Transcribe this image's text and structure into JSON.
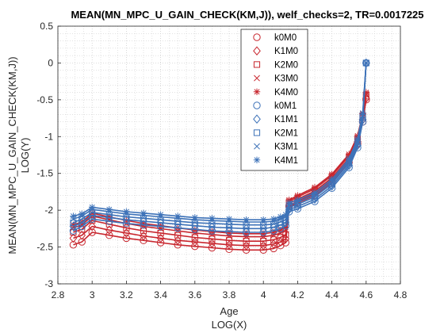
{
  "chart_data": {
    "type": "line",
    "title": "MEAN(MN_MPC_U_GAIN_CHECK(KM,J)), welf_checks=2, TR=0.0017225",
    "xlabel": "Age",
    "xlabel2": "LOG(X)",
    "ylabel": "MEAN(MN_MPC_U_GAIN_CHECK(KM,J))",
    "ylabel2": "LOG(Y)",
    "xlim": [
      2.8,
      4.8
    ],
    "ylim": [
      -3,
      0.5
    ],
    "xticks": [
      "2.8",
      "3",
      "3.2",
      "3.4",
      "3.6",
      "3.8",
      "4",
      "4.2",
      "4.4",
      "4.6",
      "4.8"
    ],
    "yticks": [
      "-3",
      "-2.5",
      "-2",
      "-1.5",
      "-1",
      "-0.5",
      "0",
      "0.5"
    ],
    "grid": true,
    "minor_grid": true,
    "legend_position": "top-right",
    "colors": {
      "red": "#c8262e",
      "blue": "#3d72b8"
    },
    "series": [
      {
        "name": "k0M0",
        "color": "#c8262e",
        "marker": "circle",
        "x": [
          2.89,
          2.94,
          3.0,
          3.1,
          3.2,
          3.3,
          3.4,
          3.5,
          3.6,
          3.7,
          3.8,
          3.9,
          4.0,
          4.06,
          4.1,
          4.13,
          4.15,
          4.2,
          4.3,
          4.4,
          4.5,
          4.55,
          4.58,
          4.6
        ],
        "y": [
          -2.47,
          -2.43,
          -2.3,
          -2.34,
          -2.38,
          -2.41,
          -2.44,
          -2.47,
          -2.49,
          -2.51,
          -2.53,
          -2.54,
          -2.54,
          -2.52,
          -2.48,
          -2.44,
          -1.95,
          -1.9,
          -1.8,
          -1.62,
          -1.35,
          -1.1,
          -0.8,
          -0.5
        ]
      },
      {
        "name": "K1M0",
        "color": "#c8262e",
        "marker": "diamond",
        "x": [
          2.89,
          2.94,
          3.0,
          3.1,
          3.2,
          3.3,
          3.4,
          3.5,
          3.6,
          3.7,
          3.8,
          3.9,
          4.0,
          4.06,
          4.1,
          4.13,
          4.15,
          4.2,
          4.3,
          4.4,
          4.5,
          4.55,
          4.58,
          4.6
        ],
        "y": [
          -2.38,
          -2.34,
          -2.22,
          -2.27,
          -2.31,
          -2.35,
          -2.38,
          -2.41,
          -2.43,
          -2.45,
          -2.47,
          -2.48,
          -2.48,
          -2.46,
          -2.43,
          -2.39,
          -1.93,
          -1.88,
          -1.77,
          -1.59,
          -1.32,
          -1.07,
          -0.77,
          -0.48
        ]
      },
      {
        "name": "K2M0",
        "color": "#c8262e",
        "marker": "square",
        "x": [
          2.89,
          2.94,
          3.0,
          3.1,
          3.2,
          3.3,
          3.4,
          3.5,
          3.6,
          3.7,
          3.8,
          3.9,
          4.0,
          4.06,
          4.1,
          4.13,
          4.15,
          4.2,
          4.3,
          4.4,
          4.5,
          4.55,
          4.58,
          4.6
        ],
        "y": [
          -2.3,
          -2.26,
          -2.14,
          -2.19,
          -2.24,
          -2.28,
          -2.31,
          -2.34,
          -2.37,
          -2.39,
          -2.41,
          -2.42,
          -2.42,
          -2.4,
          -2.37,
          -2.33,
          -1.9,
          -1.85,
          -1.74,
          -1.56,
          -1.29,
          -1.04,
          -0.74,
          -0.45
        ]
      },
      {
        "name": "K3M0",
        "color": "#c8262e",
        "marker": "x",
        "x": [
          2.89,
          2.94,
          3.0,
          3.1,
          3.2,
          3.3,
          3.4,
          3.5,
          3.6,
          3.7,
          3.8,
          3.9,
          4.0,
          4.06,
          4.1,
          4.13,
          4.15,
          4.2,
          4.3,
          4.4,
          4.5,
          4.55,
          4.58,
          4.6
        ],
        "y": [
          -2.24,
          -2.2,
          -2.08,
          -2.13,
          -2.18,
          -2.22,
          -2.25,
          -2.28,
          -2.31,
          -2.33,
          -2.35,
          -2.36,
          -2.36,
          -2.34,
          -2.31,
          -2.27,
          -1.88,
          -1.82,
          -1.71,
          -1.53,
          -1.26,
          -1.01,
          -0.71,
          -0.42
        ]
      },
      {
        "name": "K4M0",
        "color": "#c8262e",
        "marker": "asterisk",
        "x": [
          2.89,
          2.94,
          3.0,
          3.1,
          3.2,
          3.3,
          3.4,
          3.5,
          3.6,
          3.7,
          3.8,
          3.9,
          4.0,
          4.06,
          4.1,
          4.13,
          4.15,
          4.2,
          4.3,
          4.4,
          4.5,
          4.55,
          4.58,
          4.6
        ],
        "y": [
          -2.2,
          -2.16,
          -2.04,
          -2.09,
          -2.14,
          -2.18,
          -2.21,
          -2.24,
          -2.27,
          -2.29,
          -2.31,
          -2.32,
          -2.32,
          -2.3,
          -2.27,
          -2.23,
          -1.86,
          -1.8,
          -1.69,
          -1.51,
          -1.24,
          -0.99,
          -0.69,
          -0.4
        ]
      },
      {
        "name": "k0M1",
        "color": "#3d72b8",
        "marker": "circle",
        "x": [
          2.89,
          2.94,
          3.0,
          3.1,
          3.2,
          3.3,
          3.4,
          3.5,
          3.6,
          3.7,
          3.8,
          3.9,
          4.0,
          4.06,
          4.1,
          4.13,
          4.15,
          4.2,
          4.3,
          4.4,
          4.5,
          4.55,
          4.58,
          4.6
        ],
        "y": [
          -2.28,
          -2.22,
          -2.12,
          -2.15,
          -2.18,
          -2.2,
          -2.22,
          -2.24,
          -2.26,
          -2.28,
          -2.29,
          -2.3,
          -2.3,
          -2.28,
          -2.25,
          -2.21,
          -2.02,
          -1.98,
          -1.88,
          -1.7,
          -1.42,
          -1.15,
          -0.8,
          0.0
        ]
      },
      {
        "name": "K1M1",
        "color": "#3d72b8",
        "marker": "diamond",
        "x": [
          2.89,
          2.94,
          3.0,
          3.1,
          3.2,
          3.3,
          3.4,
          3.5,
          3.6,
          3.7,
          3.8,
          3.9,
          4.0,
          4.06,
          4.1,
          4.13,
          4.15,
          4.2,
          4.3,
          4.4,
          4.5,
          4.55,
          4.58,
          4.6
        ],
        "y": [
          -2.22,
          -2.17,
          -2.07,
          -2.1,
          -2.13,
          -2.15,
          -2.17,
          -2.19,
          -2.21,
          -2.23,
          -2.24,
          -2.25,
          -2.25,
          -2.23,
          -2.2,
          -2.17,
          -1.99,
          -1.95,
          -1.85,
          -1.67,
          -1.39,
          -1.12,
          -0.77,
          0.0
        ]
      },
      {
        "name": "K2M1",
        "color": "#3d72b8",
        "marker": "square",
        "x": [
          2.89,
          2.94,
          3.0,
          3.1,
          3.2,
          3.3,
          3.4,
          3.5,
          3.6,
          3.7,
          3.8,
          3.9,
          4.0,
          4.06,
          4.1,
          4.13,
          4.15,
          4.2,
          4.3,
          4.4,
          4.5,
          4.55,
          4.58,
          4.6
        ],
        "y": [
          -2.17,
          -2.12,
          -2.03,
          -2.06,
          -2.09,
          -2.11,
          -2.13,
          -2.15,
          -2.17,
          -2.18,
          -2.19,
          -2.2,
          -2.2,
          -2.19,
          -2.16,
          -2.13,
          -1.96,
          -1.92,
          -1.82,
          -1.64,
          -1.36,
          -1.09,
          -0.74,
          0.0
        ]
      },
      {
        "name": "K3M1",
        "color": "#3d72b8",
        "marker": "x",
        "x": [
          2.89,
          2.94,
          3.0,
          3.1,
          3.2,
          3.3,
          3.4,
          3.5,
          3.6,
          3.7,
          3.8,
          3.9,
          4.0,
          4.06,
          4.1,
          4.13,
          4.15,
          4.2,
          4.3,
          4.4,
          4.5,
          4.55,
          4.58,
          4.6
        ],
        "y": [
          -2.12,
          -2.08,
          -1.99,
          -2.02,
          -2.05,
          -2.07,
          -2.09,
          -2.11,
          -2.13,
          -2.14,
          -2.15,
          -2.16,
          -2.16,
          -2.15,
          -2.12,
          -2.09,
          -1.93,
          -1.89,
          -1.79,
          -1.61,
          -1.33,
          -1.06,
          -0.71,
          0.0
        ]
      },
      {
        "name": "K4M1",
        "color": "#3d72b8",
        "marker": "asterisk",
        "x": [
          2.89,
          2.94,
          3.0,
          3.1,
          3.2,
          3.3,
          3.4,
          3.5,
          3.6,
          3.7,
          3.8,
          3.9,
          4.0,
          4.06,
          4.1,
          4.13,
          4.15,
          4.2,
          4.3,
          4.4,
          4.5,
          4.55,
          4.58,
          4.6
        ],
        "y": [
          -2.08,
          -2.05,
          -1.96,
          -1.99,
          -2.02,
          -2.04,
          -2.06,
          -2.08,
          -2.1,
          -2.11,
          -2.12,
          -2.13,
          -2.13,
          -2.12,
          -2.09,
          -2.06,
          -1.9,
          -1.86,
          -1.76,
          -1.58,
          -1.3,
          -1.03,
          -0.68,
          0.0
        ]
      }
    ]
  }
}
